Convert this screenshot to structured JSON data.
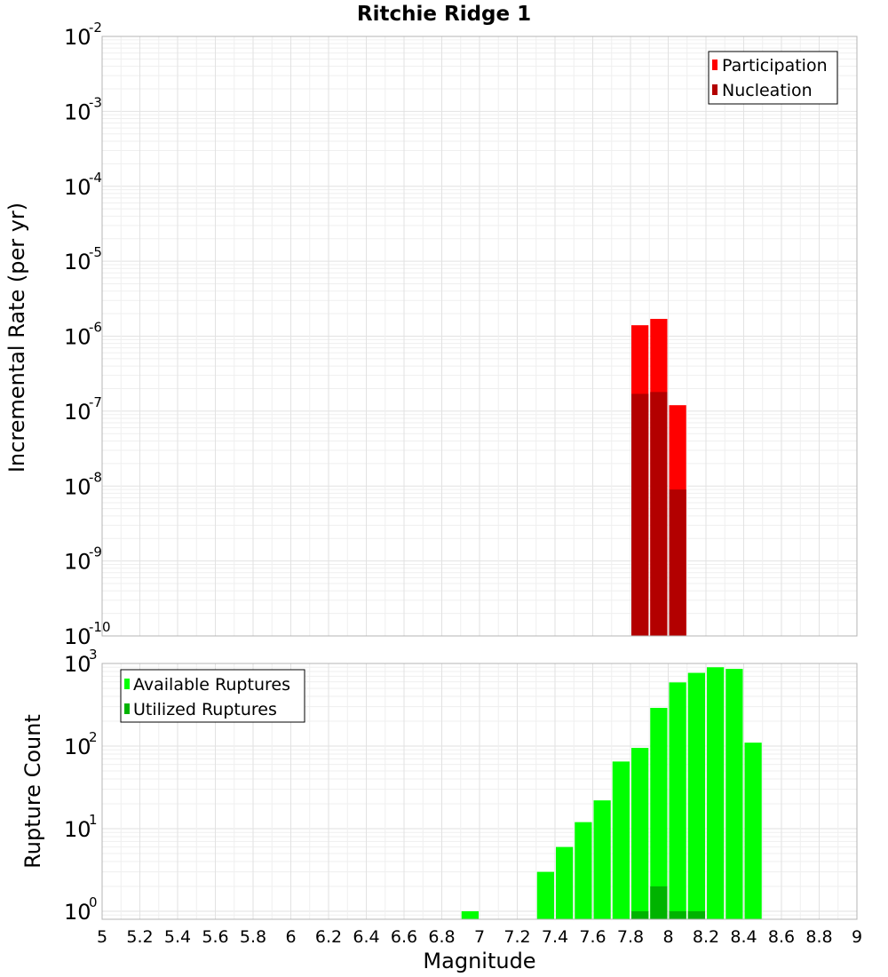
{
  "title": "Ritchie Ridge 1",
  "colors": {
    "participation": "#ff0000",
    "nucleation": "#b30000",
    "available": "#00ff00",
    "utilized": "#00b300"
  },
  "chart_data": [
    {
      "type": "bar",
      "xlabel": "",
      "ylabel": "Incremental Rate (per yr)",
      "yscale": "log",
      "ylim": [
        1e-10,
        0.01
      ],
      "xlim": [
        5,
        9
      ],
      "bar_width": 0.1,
      "ytick_exponents": [
        "-10",
        "-9",
        "-8",
        "-7",
        "-6",
        "-5",
        "-4",
        "-3",
        "-2"
      ],
      "ytick_base": "10",
      "grid": true,
      "legend_position": "top-right",
      "series": [
        {
          "name": "Participation",
          "x": [
            7.85,
            7.95,
            8.05
          ],
          "values": [
            1.4e-06,
            1.7e-06,
            1.2e-07
          ]
        },
        {
          "name": "Nucleation",
          "x": [
            7.85,
            7.95,
            8.05
          ],
          "values": [
            1.7e-07,
            1.8e-07,
            9e-09
          ]
        }
      ]
    },
    {
      "type": "bar",
      "xlabel": "Magnitude",
      "ylabel": "Rupture Count",
      "yscale": "log",
      "ylim": [
        0.8,
        1000
      ],
      "xlim": [
        5,
        9
      ],
      "bar_width": 0.1,
      "ytick_exponents": [
        "0",
        "1",
        "2",
        "3"
      ],
      "ytick_base": "10",
      "xticks": [
        "5",
        "5.2",
        "5.4",
        "5.6",
        "5.8",
        "6",
        "6.2",
        "6.4",
        "6.6",
        "6.8",
        "7",
        "7.2",
        "7.4",
        "7.6",
        "7.8",
        "8",
        "8.2",
        "8.4",
        "8.6",
        "8.8",
        "9"
      ],
      "grid": true,
      "legend_position": "top-left",
      "series": [
        {
          "name": "Available Ruptures",
          "x": [
            6.95,
            7.35,
            7.45,
            7.55,
            7.65,
            7.75,
            7.85,
            7.95,
            8.05,
            8.15,
            8.25,
            8.35,
            8.45
          ],
          "values": [
            1,
            3,
            6,
            12,
            22,
            65,
            95,
            290,
            590,
            770,
            900,
            860,
            110
          ]
        },
        {
          "name": "Utilized Ruptures",
          "x": [
            7.85,
            7.95,
            8.05,
            8.15
          ],
          "values": [
            1,
            2,
            1,
            1
          ]
        }
      ]
    }
  ]
}
